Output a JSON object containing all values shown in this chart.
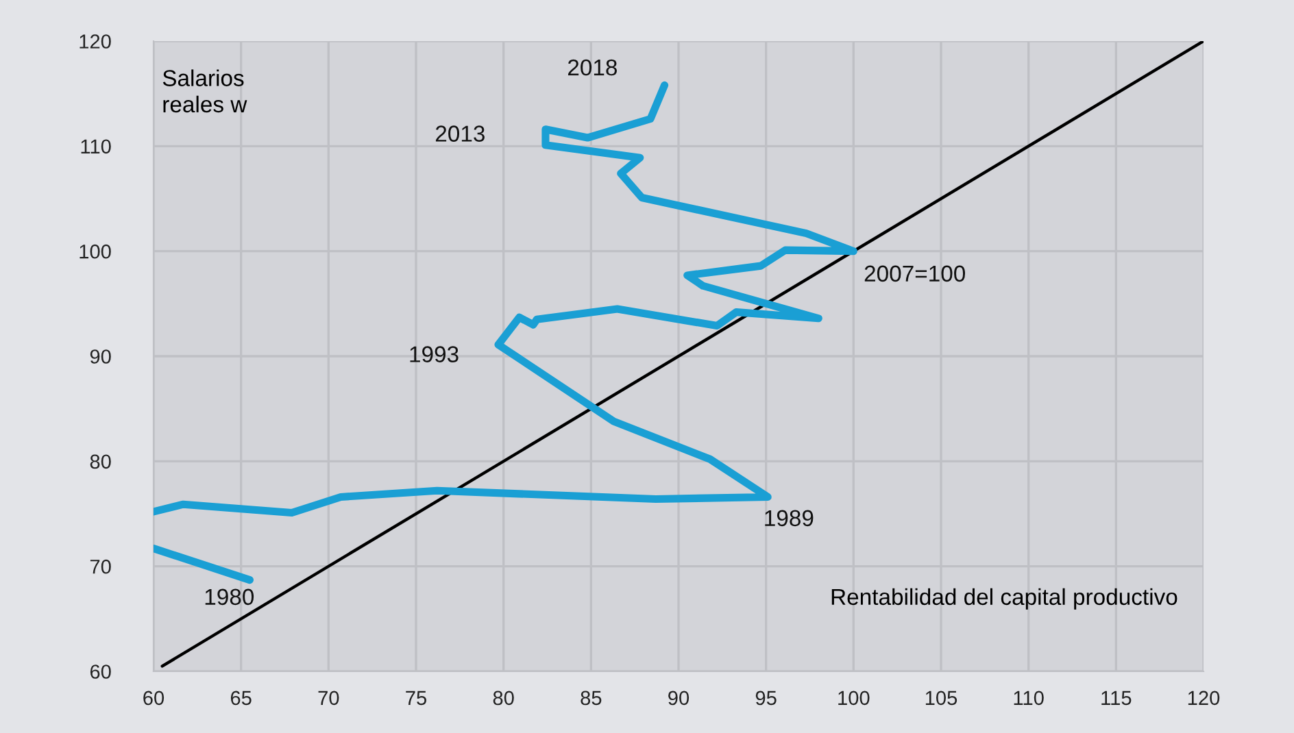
{
  "chart_data": {
    "type": "line",
    "xlabel": "Rentabilidad del capital productivo",
    "ylabel": "Salarios\nreales w",
    "series": [
      {
        "color": "#1a9fd4",
        "x": [
          65.5,
          60,
          null,
          60,
          61.7,
          67.9,
          70.7,
          76.2,
          88.7,
          95.1,
          91.8,
          86.3,
          79.7,
          80.9,
          81.7,
          81.9,
          86.5,
          92.2,
          93.3,
          98,
          91.4,
          90.5,
          94.7,
          96.1,
          100,
          97.3,
          87.9,
          86.7,
          87.8,
          82.4,
          82.4,
          84.8,
          88.4,
          89.2
        ],
        "values": [
          68.7,
          71.7,
          null,
          75.2,
          75.9,
          75.1,
          76.6,
          77.2,
          76.4,
          76.6,
          80.2,
          83.8,
          91.1,
          93.7,
          93,
          93.5,
          94.5,
          92.9,
          94.2,
          93.6,
          96.7,
          97.7,
          98.6,
          100.1,
          100,
          101.7,
          105.1,
          107.4,
          108.9,
          110.1,
          111.6,
          110.8,
          112.6,
          115.8
        ]
      },
      {
        "color": "#000000",
        "x": [
          60.5,
          120
        ],
        "values": [
          60.5,
          120
        ]
      }
    ],
    "annotations": [
      "2018",
      "2013",
      "1993",
      "1989",
      "1980",
      "2007=100"
    ],
    "xlim": [
      60,
      120
    ],
    "ylim": [
      60,
      120
    ],
    "xticks": [
      60,
      65,
      70,
      75,
      80,
      85,
      90,
      95,
      100,
      105,
      110,
      115,
      120
    ],
    "yticks": [
      60,
      70,
      80,
      90,
      100,
      110,
      120
    ],
    "grid": true,
    "legend": false,
    "marker": "none",
    "line_style": "solid"
  }
}
